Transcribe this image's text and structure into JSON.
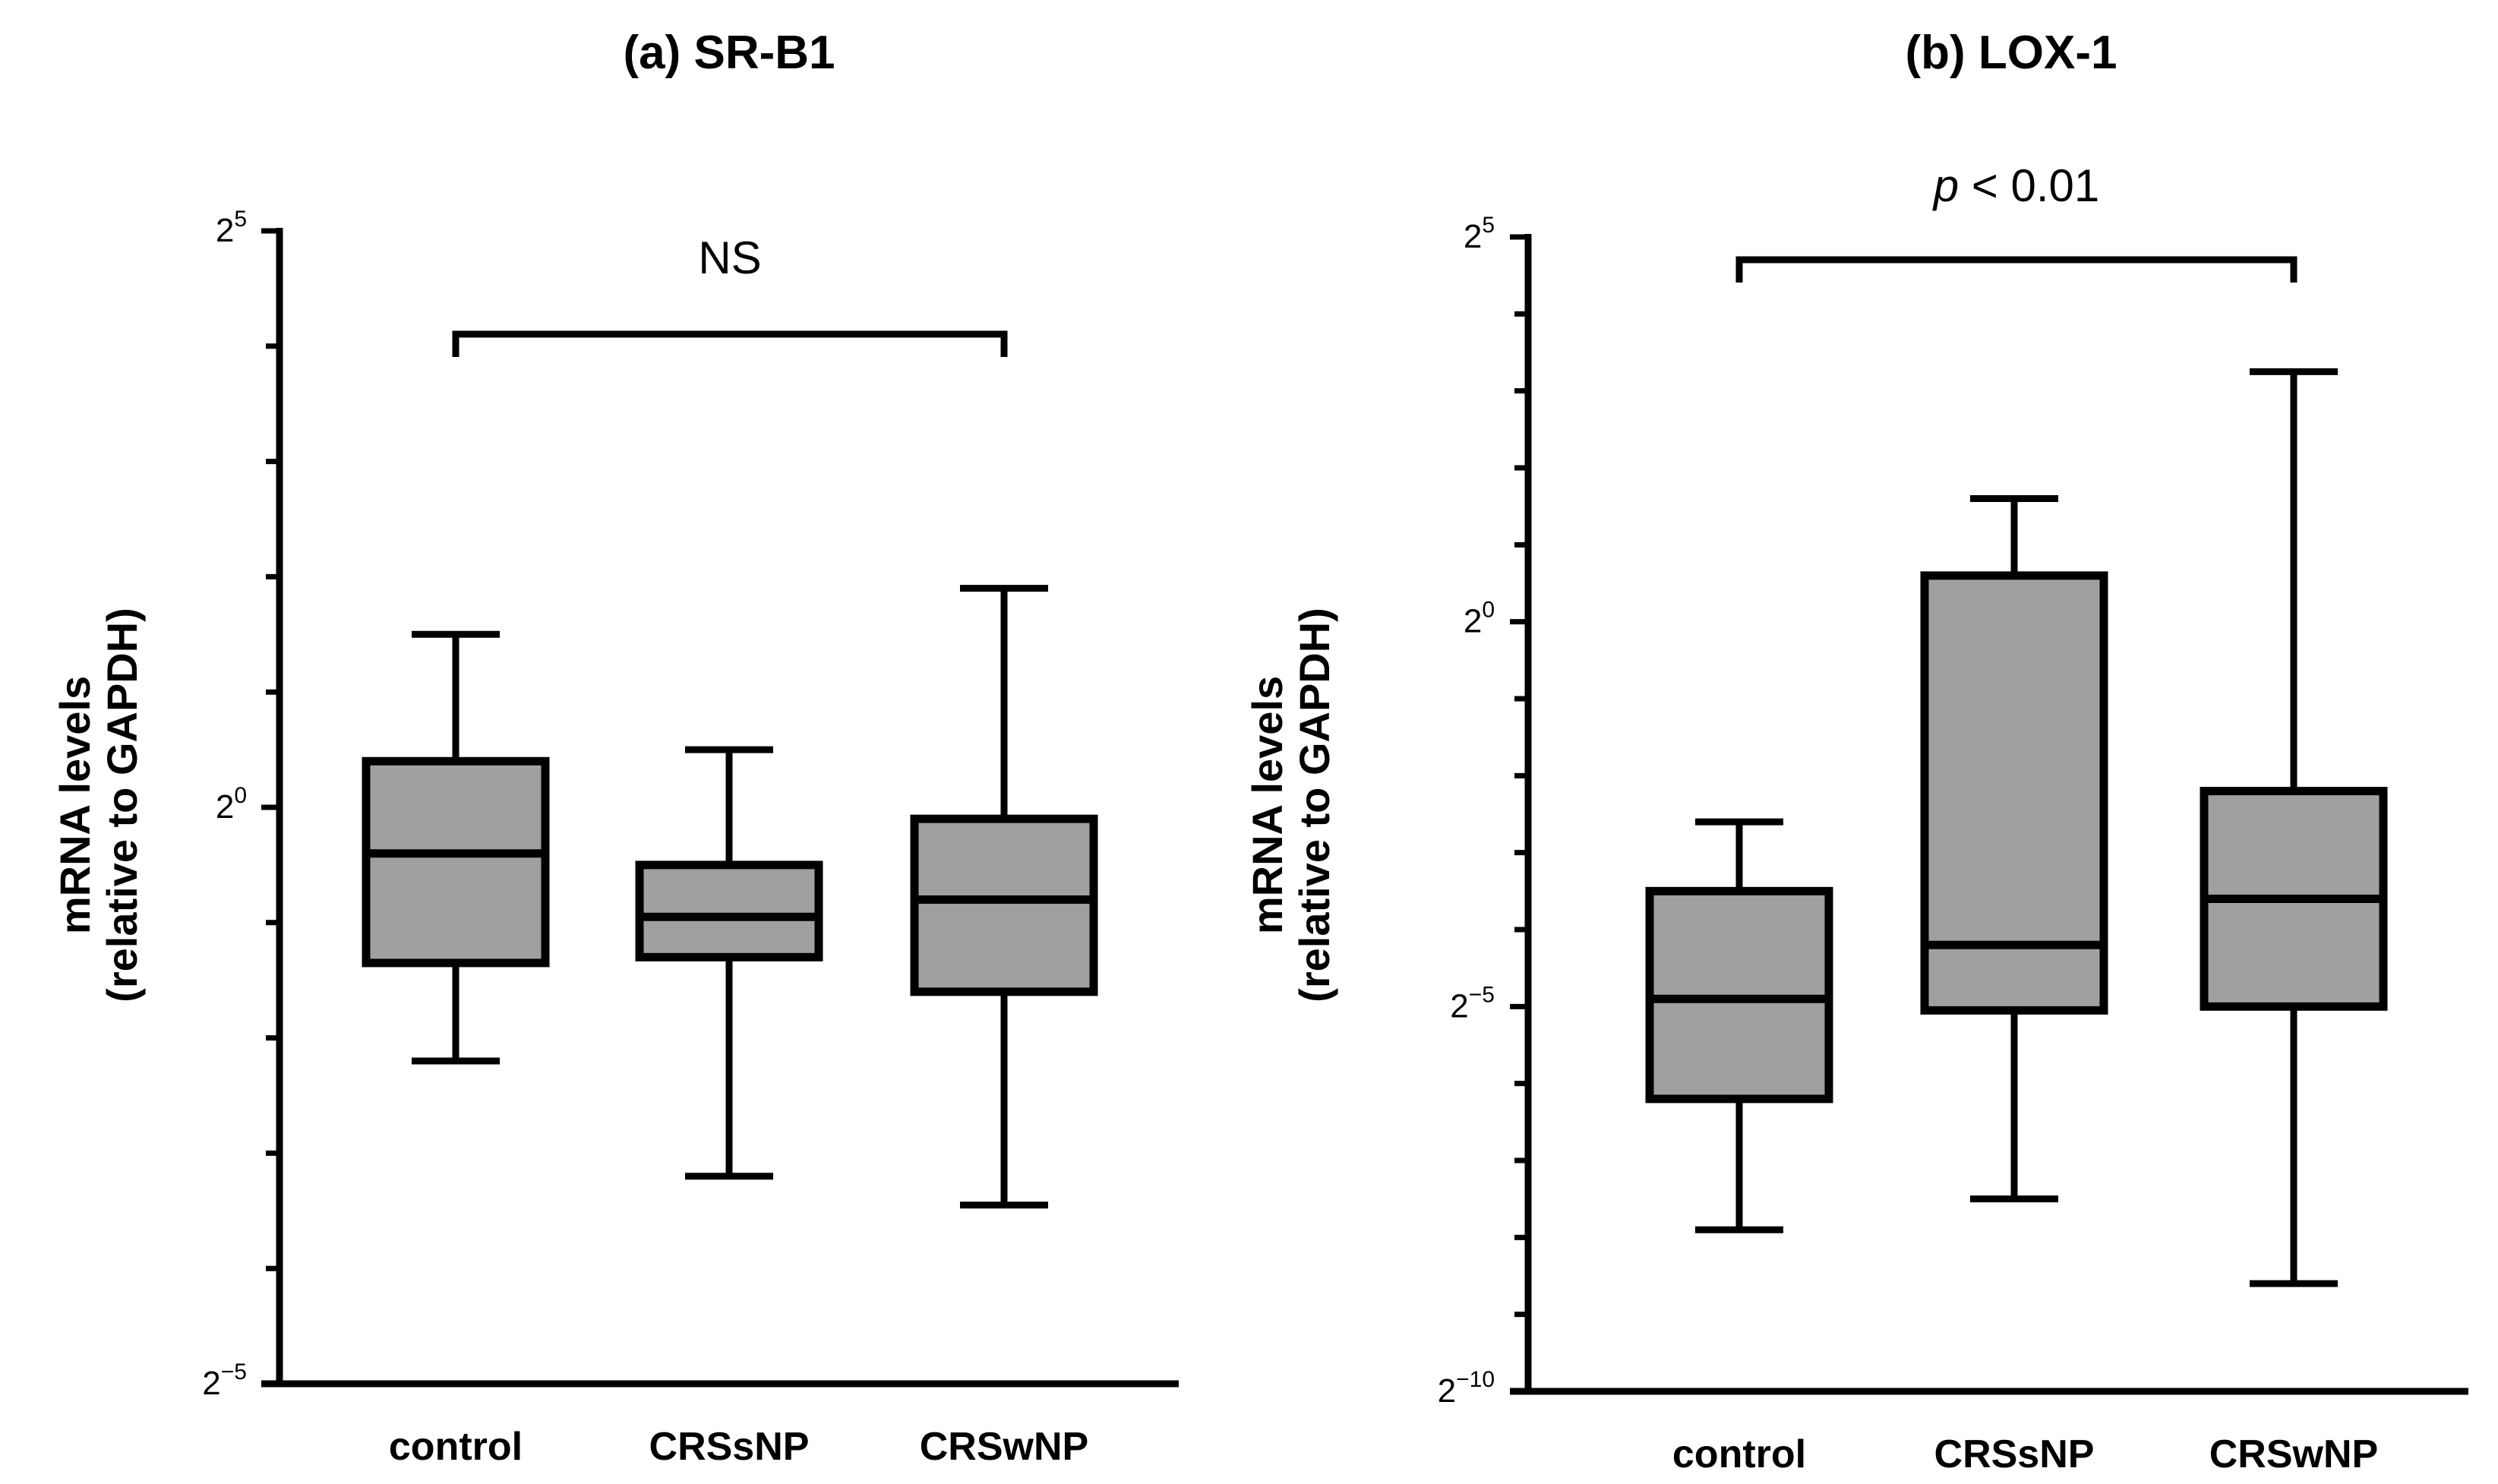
{
  "chart_data": [
    {
      "type": "box",
      "title": "(a) SR-B1",
      "ylabel_line1": "mRNA levels",
      "ylabel_line2": "(relative to GAPDH)",
      "yscale": "log2",
      "ylim_exp": [
        -5,
        5
      ],
      "major_ticks": [
        {
          "base": "2",
          "exp": "5",
          "value_exp": 5
        },
        {
          "base": "2",
          "exp": "0",
          "value_exp": 0
        },
        {
          "base": "2",
          "exp": "−5",
          "value_exp": -5
        }
      ],
      "categories": [
        "control",
        "CRSsNP",
        "CRSwNP"
      ],
      "boxes_log2": [
        {
          "min": -2.2,
          "q1": -1.35,
          "median": -0.4,
          "q3": 0.4,
          "max": 1.5
        },
        {
          "min": -3.2,
          "q1": -1.3,
          "median": -0.95,
          "q3": -0.5,
          "max": 0.5
        },
        {
          "min": -3.45,
          "q1": -1.6,
          "median": -0.8,
          "q3": -0.1,
          "max": 1.9
        }
      ],
      "significance": {
        "label": "NS",
        "italic_prefix": "",
        "from": 0,
        "to": 2
      }
    },
    {
      "type": "box",
      "title": "(b) LOX-1",
      "ylabel_line1": "mRNA levels",
      "ylabel_line2": "(relative to GAPDH)",
      "yscale": "log2",
      "ylim_exp": [
        -10,
        5
      ],
      "major_ticks": [
        {
          "base": "2",
          "exp": "5",
          "value_exp": 5
        },
        {
          "base": "2",
          "exp": "0",
          "value_exp": 0
        },
        {
          "base": "2",
          "exp": "−5",
          "value_exp": -5
        },
        {
          "base": "2",
          "exp": "−10",
          "value_exp": -10
        }
      ],
      "categories": [
        "control",
        "CRSsNP",
        "CRSwNP"
      ],
      "boxes_log2": [
        {
          "min": -7.9,
          "q1": -6.2,
          "median": -4.9,
          "q3": -3.5,
          "max": -2.6
        },
        {
          "min": -7.5,
          "q1": -5.05,
          "median": -4.2,
          "q3": 0.6,
          "max": 1.6
        },
        {
          "min": -8.6,
          "q1": -5.0,
          "median": -3.6,
          "q3": -2.2,
          "max": 3.25
        }
      ],
      "significance": {
        "label": " < 0.01",
        "italic_prefix": "p",
        "from": 0,
        "to": 2
      }
    }
  ]
}
